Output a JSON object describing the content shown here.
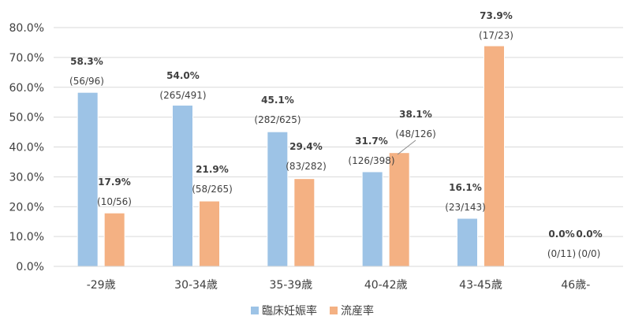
{
  "chart_data": {
    "type": "bar",
    "categories": [
      "-29歳",
      "30-34歳",
      "35-39歳",
      "40-42歳",
      "43-45歳",
      "46歳-"
    ],
    "series": [
      {
        "name": "臨床妊娠率",
        "color": "#9dc3e6",
        "values": [
          58.3,
          54.0,
          45.1,
          31.7,
          16.1,
          0.0
        ],
        "labels": [
          "58.3%",
          "54.0%",
          "45.1%",
          "31.7%",
          "16.1%",
          "0.0%"
        ],
        "counts": [
          "(56/96)",
          "(265/491)",
          "(282/625)",
          "(126/398)",
          "(23/143)",
          "(0/11)"
        ]
      },
      {
        "name": "流産率",
        "color": "#f4b183",
        "values": [
          17.9,
          21.9,
          29.4,
          38.1,
          73.9,
          0.0
        ],
        "labels": [
          "17.9%",
          "21.9%",
          "29.4%",
          "38.1%",
          "73.9%",
          "0.0%"
        ],
        "counts": [
          "(10/56)",
          "(58/265)",
          "(83/282)",
          "(48/126)",
          "(17/23)",
          "(0/0)"
        ]
      }
    ],
    "ylim": [
      0,
      80
    ],
    "yticks": [
      "0.0%",
      "10.0%",
      "20.0%",
      "30.0%",
      "40.0%",
      "50.0%",
      "60.0%",
      "70.0%",
      "80.0%"
    ],
    "grid": true,
    "legend": "bottom-center",
    "title": "",
    "xlabel": "",
    "ylabel": ""
  }
}
